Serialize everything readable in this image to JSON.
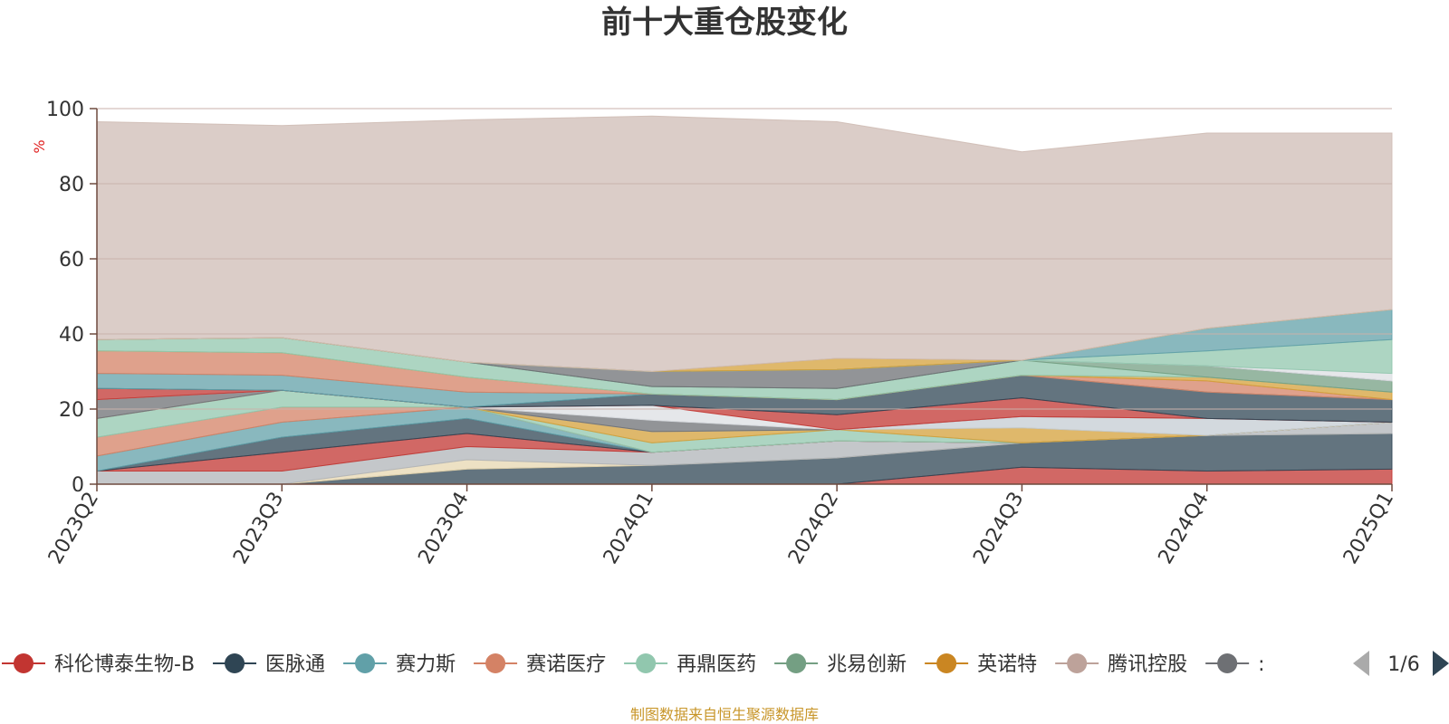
{
  "chart_data": {
    "type": "area",
    "stacked": true,
    "title": "前十大重仓股变化",
    "ylabel": "%",
    "ylim": [
      0,
      100
    ],
    "yticks": [
      0,
      20,
      40,
      60,
      80,
      100
    ],
    "grid": true,
    "categories": [
      "2023Q2",
      "2023Q3",
      "2023Q4",
      "2024Q1",
      "2024Q2",
      "2024Q3",
      "2024Q4",
      "2025Q1"
    ],
    "series": [
      {
        "color": "#c23531",
        "values": [
          0,
          0,
          0,
          0,
          0,
          4.5,
          3.5,
          4
        ]
      },
      {
        "color": "#2f4554",
        "values": [
          0,
          0,
          4,
          5,
          7,
          6.5,
          9.5,
          9.5
        ]
      },
      {
        "color": "#e7d7b0",
        "values": [
          0,
          0,
          2.5,
          0,
          0,
          0,
          0,
          0
        ]
      },
      {
        "color": "#b0b4b8",
        "values": [
          3.5,
          3.5,
          3.5,
          3.5,
          4.5,
          0,
          0,
          3
        ]
      },
      {
        "color": "#c23531",
        "values": [
          0,
          5,
          3.5,
          0,
          0,
          0,
          0,
          0
        ]
      },
      {
        "color": "#2f4554",
        "values": [
          0,
          4,
          4,
          0,
          0,
          0,
          0,
          0
        ]
      },
      {
        "color": "#61a0a8",
        "values": [
          4,
          4,
          3,
          0,
          0,
          0,
          0,
          0
        ]
      },
      {
        "color": "#d48265",
        "values": [
          5,
          4,
          0,
          0,
          0,
          0,
          0,
          0
        ]
      },
      {
        "color": "#91c7ae",
        "values": [
          5,
          4.5,
          0,
          2.5,
          3,
          0,
          0,
          0
        ]
      },
      {
        "color": "#d4a03a",
        "values": [
          0,
          0,
          0,
          3,
          0,
          4,
          0,
          0
        ]
      },
      {
        "color": "#c4ccd3",
        "values": [
          0,
          0,
          0,
          0,
          0,
          3,
          4.5,
          0
        ]
      },
      {
        "color": "#6e7074",
        "values": [
          5,
          0,
          0,
          3,
          0,
          0,
          0,
          0
        ]
      },
      {
        "color": "#dcdfe3",
        "values": [
          0,
          0,
          0,
          4,
          0,
          0,
          0,
          0
        ]
      },
      {
        "color": "#c23531",
        "values": [
          3,
          0,
          0,
          0,
          4,
          5,
          0,
          0
        ]
      },
      {
        "color": "#2f4554",
        "values": [
          0,
          0,
          0,
          3,
          4,
          6,
          7,
          6
        ]
      },
      {
        "color": "#61a0a8",
        "values": [
          4,
          4,
          4,
          0,
          0,
          0,
          0,
          0
        ]
      },
      {
        "color": "#d48265",
        "values": [
          6,
          6,
          4,
          0,
          0,
          0,
          3,
          0
        ]
      },
      {
        "color": "#d4a03a",
        "values": [
          0,
          0,
          0,
          0,
          0,
          0,
          1,
          2
        ]
      },
      {
        "color": "#91c7ae",
        "values": [
          3,
          4,
          4,
          2,
          3,
          4,
          0,
          0
        ]
      },
      {
        "color": "#749f83",
        "values": [
          0,
          0,
          0,
          0,
          0,
          0,
          3,
          3
        ]
      },
      {
        "color": "#6e7074",
        "values": [
          0,
          0,
          0,
          4,
          5,
          0,
          0,
          0
        ]
      },
      {
        "color": "#dcdfe3",
        "values": [
          0,
          0,
          0,
          0,
          0,
          0,
          0,
          2
        ]
      },
      {
        "color": "#91c7ae",
        "values": [
          0,
          0,
          0,
          0,
          0,
          0,
          4,
          9
        ]
      },
      {
        "color": "#61a0a8",
        "values": [
          0,
          0,
          0,
          0,
          0,
          0,
          6,
          8
        ]
      },
      {
        "color": "#d4a03a",
        "values": [
          0,
          0,
          0,
          0,
          3,
          0,
          0,
          0
        ]
      },
      {
        "color": "#cfbcb5",
        "values": [
          58,
          56.5,
          64.5,
          68,
          63,
          55.5,
          52,
          47
        ]
      }
    ],
    "legend": {
      "position": "bottom",
      "items": [
        {
          "label": "科伦博泰生物-B",
          "color": "#c23531"
        },
        {
          "label": "医脉通",
          "color": "#2f4554"
        },
        {
          "label": "赛力斯",
          "color": "#61a0a8"
        },
        {
          "label": "赛诺医疗",
          "color": "#d48265"
        },
        {
          "label": "再鼎医药",
          "color": "#91c7ae"
        },
        {
          "label": "兆易创新",
          "color": "#749f83"
        },
        {
          "label": "英诺特",
          "color": "#ca8622"
        },
        {
          "label": "腾讯控股",
          "color": "#bda29a"
        },
        {
          "label": ":",
          "color": "#6e7074"
        }
      ],
      "page": "1/6"
    },
    "source_note": "制图数据来自恒生聚源数据库",
    "colors": {
      "title": "#333333",
      "unit_label": "#e02020",
      "axis": "#6e4a3f",
      "grid": "#c9b2ab",
      "source": "#c8962a",
      "pager_inactive": "#aaaaaa",
      "pager_active": "#2f4554"
    }
  }
}
